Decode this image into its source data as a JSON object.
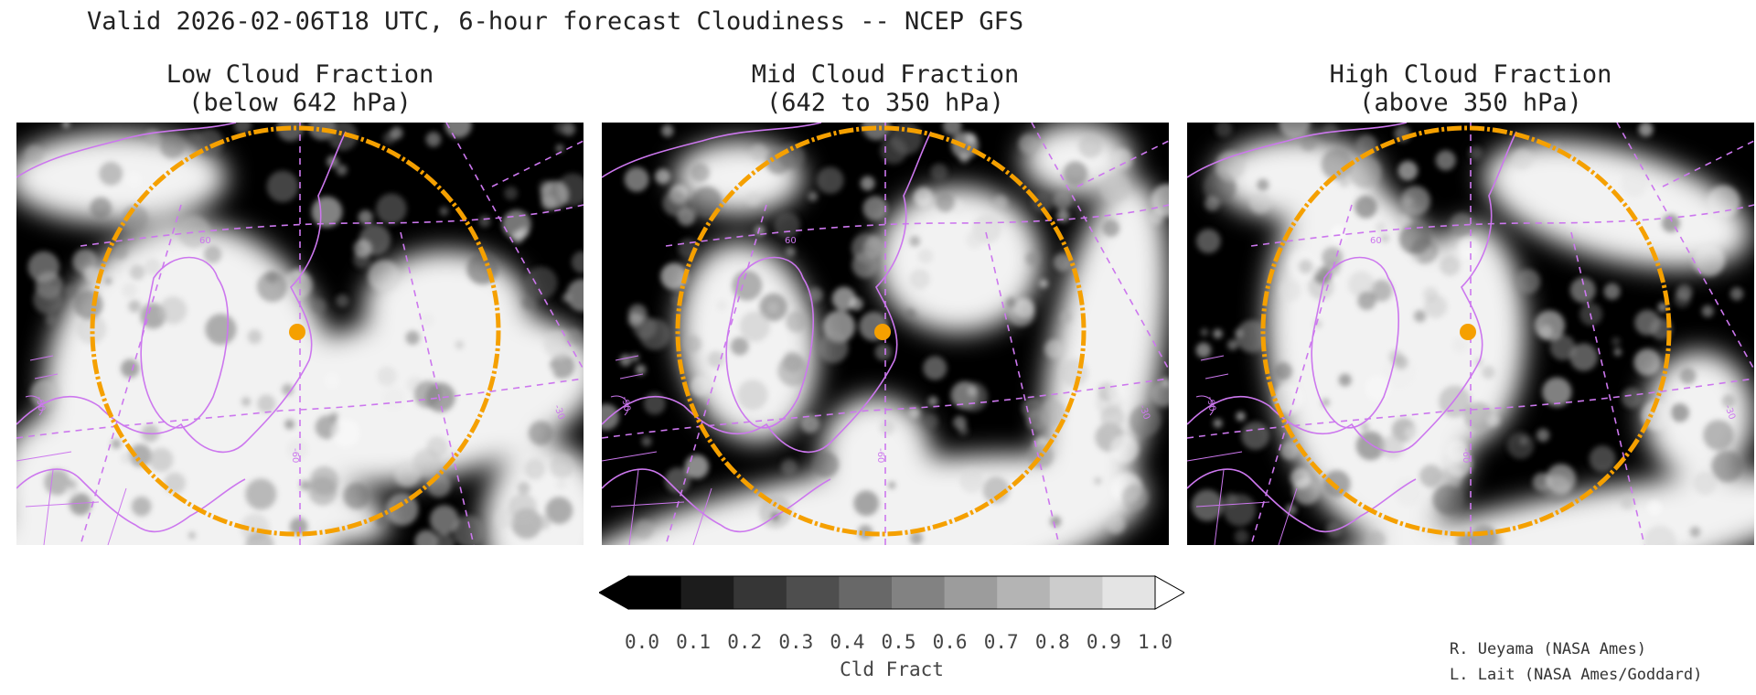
{
  "title": "Valid 2026-02-06T18 UTC, 6-hour forecast Cloudiness -- NCEP GFS",
  "panels": [
    {
      "title_line1": "Low Cloud Fraction",
      "title_line2": "(below 642 hPa)",
      "layer": "low"
    },
    {
      "title_line1": "Mid Cloud Fraction",
      "title_line2": "(642 to 350 hPa)",
      "layer": "mid"
    },
    {
      "title_line1": "High Cloud Fraction",
      "title_line2": "(above 350 hPa)",
      "layer": "high"
    }
  ],
  "map_labels": {
    "lat": "60",
    "lon_a": "-60",
    "lon_b": "-90",
    "lon_c": "-30"
  },
  "colorbar": {
    "label": "Cld Fract",
    "ticks": [
      "0.0",
      "0.1",
      "0.2",
      "0.3",
      "0.4",
      "0.5",
      "0.6",
      "0.7",
      "0.8",
      "0.9",
      "1.0"
    ],
    "colors": [
      "#000000",
      "#1c1c1c",
      "#363636",
      "#4e4e4e",
      "#686868",
      "#828282",
      "#9c9c9c",
      "#b4b4b4",
      "#cccccc",
      "#e4e4e4",
      "#ffffff"
    ]
  },
  "colors": {
    "overlay_lines": "#cc77ee",
    "range_ring": "#f5a000",
    "marker": "#f5a000"
  },
  "credits": [
    "R. Ueyama (NASA Ames)",
    "L. Lait (NASA Ames/Goddard)"
  ]
}
